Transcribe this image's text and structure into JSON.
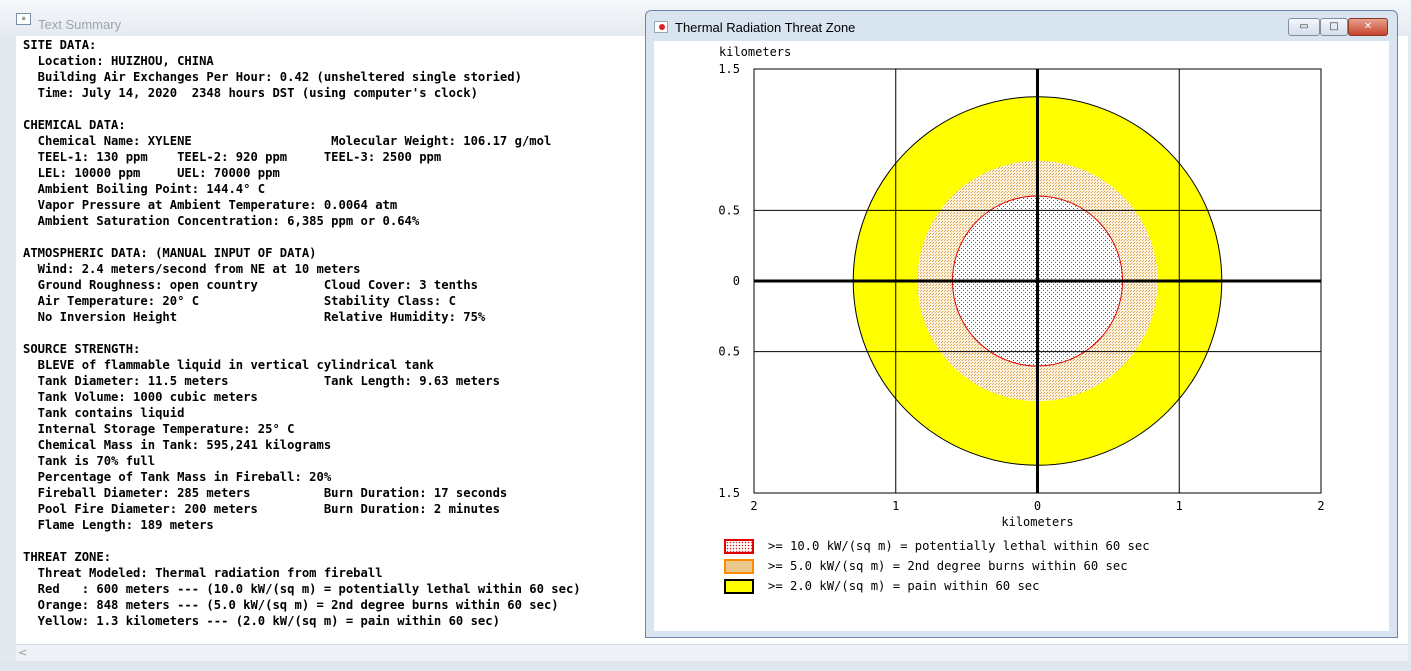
{
  "text_summary": {
    "title": "Text Summary",
    "icon": "text-document-icon",
    "scroll_left_glyph": "<",
    "lines": [
      "SITE DATA:",
      "  Location: HUIZHOU, CHINA",
      "  Building Air Exchanges Per Hour: 0.42 (unsheltered single storied)",
      "  Time: July 14, 2020  2348 hours DST (using computer's clock)",
      "",
      "CHEMICAL DATA:",
      "  Chemical Name: XYLENE                   Molecular Weight: 106.17 g/mol",
      "  TEEL-1: 130 ppm    TEEL-2: 920 ppm     TEEL-3: 2500 ppm",
      "  LEL: 10000 ppm     UEL: 70000 ppm",
      "  Ambient Boiling Point: 144.4° C",
      "  Vapor Pressure at Ambient Temperature: 0.0064 atm",
      "  Ambient Saturation Concentration: 6,385 ppm or 0.64%",
      "",
      "ATMOSPHERIC DATA: (MANUAL INPUT OF DATA)",
      "  Wind: 2.4 meters/second from NE at 10 meters",
      "  Ground Roughness: open country         Cloud Cover: 3 tenths",
      "  Air Temperature: 20° C                 Stability Class: C",
      "  No Inversion Height                    Relative Humidity: 75%",
      "",
      "SOURCE STRENGTH:",
      "  BLEVE of flammable liquid in vertical cylindrical tank",
      "  Tank Diameter: 11.5 meters             Tank Length: 9.63 meters",
      "  Tank Volume: 1000 cubic meters",
      "  Tank contains liquid",
      "  Internal Storage Temperature: 25° C",
      "  Chemical Mass in Tank: 595,241 kilograms",
      "  Tank is 70% full",
      "  Percentage of Tank Mass in Fireball: 20%",
      "  Fireball Diameter: 285 meters          Burn Duration: 17 seconds",
      "  Pool Fire Diameter: 200 meters         Burn Duration: 2 minutes",
      "  Flame Length: 189 meters",
      "",
      "THREAT ZONE:",
      "  Threat Modeled: Thermal radiation from fireball",
      "  Red   : 600 meters --- (10.0 kW/(sq m) = potentially lethal within 60 sec)",
      "  Orange: 848 meters --- (5.0 kW/(sq m) = 2nd degree burns within 60 sec)",
      "  Yellow: 1.3 kilometers --- (2.0 kW/(sq m) = pain within 60 sec)"
    ]
  },
  "threat_zone": {
    "title": "Thermal Radiation Threat Zone",
    "icon": "app-icon",
    "buttons": {
      "minimize": "▭",
      "maximize": "□",
      "close": "✕"
    },
    "legend": [
      {
        "label": ">= 10.0 kW/(sq m) = potentially lethal within 60 sec",
        "border": "#e00000",
        "fill": "#fbe9ea",
        "pattern": "dots-red"
      },
      {
        "label": ">= 5.0 kW/(sq m) = 2nd degree burns within 60 sec",
        "border": "#ff8c00",
        "fill": "#f5e8c8",
        "pattern": "dots-orange"
      },
      {
        "label": ">= 2.0 kW/(sq m) = pain within 60 sec",
        "border": "#000000",
        "fill": "#ffff00",
        "pattern": "solid"
      }
    ]
  },
  "chart_data": {
    "type": "scatter",
    "title": "",
    "xlabel": "kilometers",
    "ylabel": "kilometers",
    "xlim": [
      -2,
      2
    ],
    "ylim": [
      -1.5,
      1.5
    ],
    "x_ticks": [
      -2,
      -1,
      0,
      1,
      2
    ],
    "x_tick_labels": [
      "2",
      "1",
      "0",
      "1",
      "2"
    ],
    "y_ticks": [
      1.5,
      0.5,
      0,
      -0.5,
      -1.5
    ],
    "y_tick_labels": [
      "1.5",
      "0.5",
      "0",
      "0.5",
      "1.5"
    ],
    "grid": true,
    "series": [
      {
        "name": "Yellow",
        "shape": "circle",
        "center": [
          0,
          0
        ],
        "radius_km": 1.3,
        "fill": "#ffff00",
        "stroke": "#000000"
      },
      {
        "name": "Orange",
        "shape": "circle",
        "center": [
          0,
          0
        ],
        "radius_km": 0.848,
        "fill": "#f5e8c8",
        "stroke": "#ffffff"
      },
      {
        "name": "Red",
        "shape": "circle",
        "center": [
          0,
          0
        ],
        "radius_km": 0.6,
        "fill": "#fbe9ea",
        "stroke": "#e00000"
      }
    ]
  }
}
